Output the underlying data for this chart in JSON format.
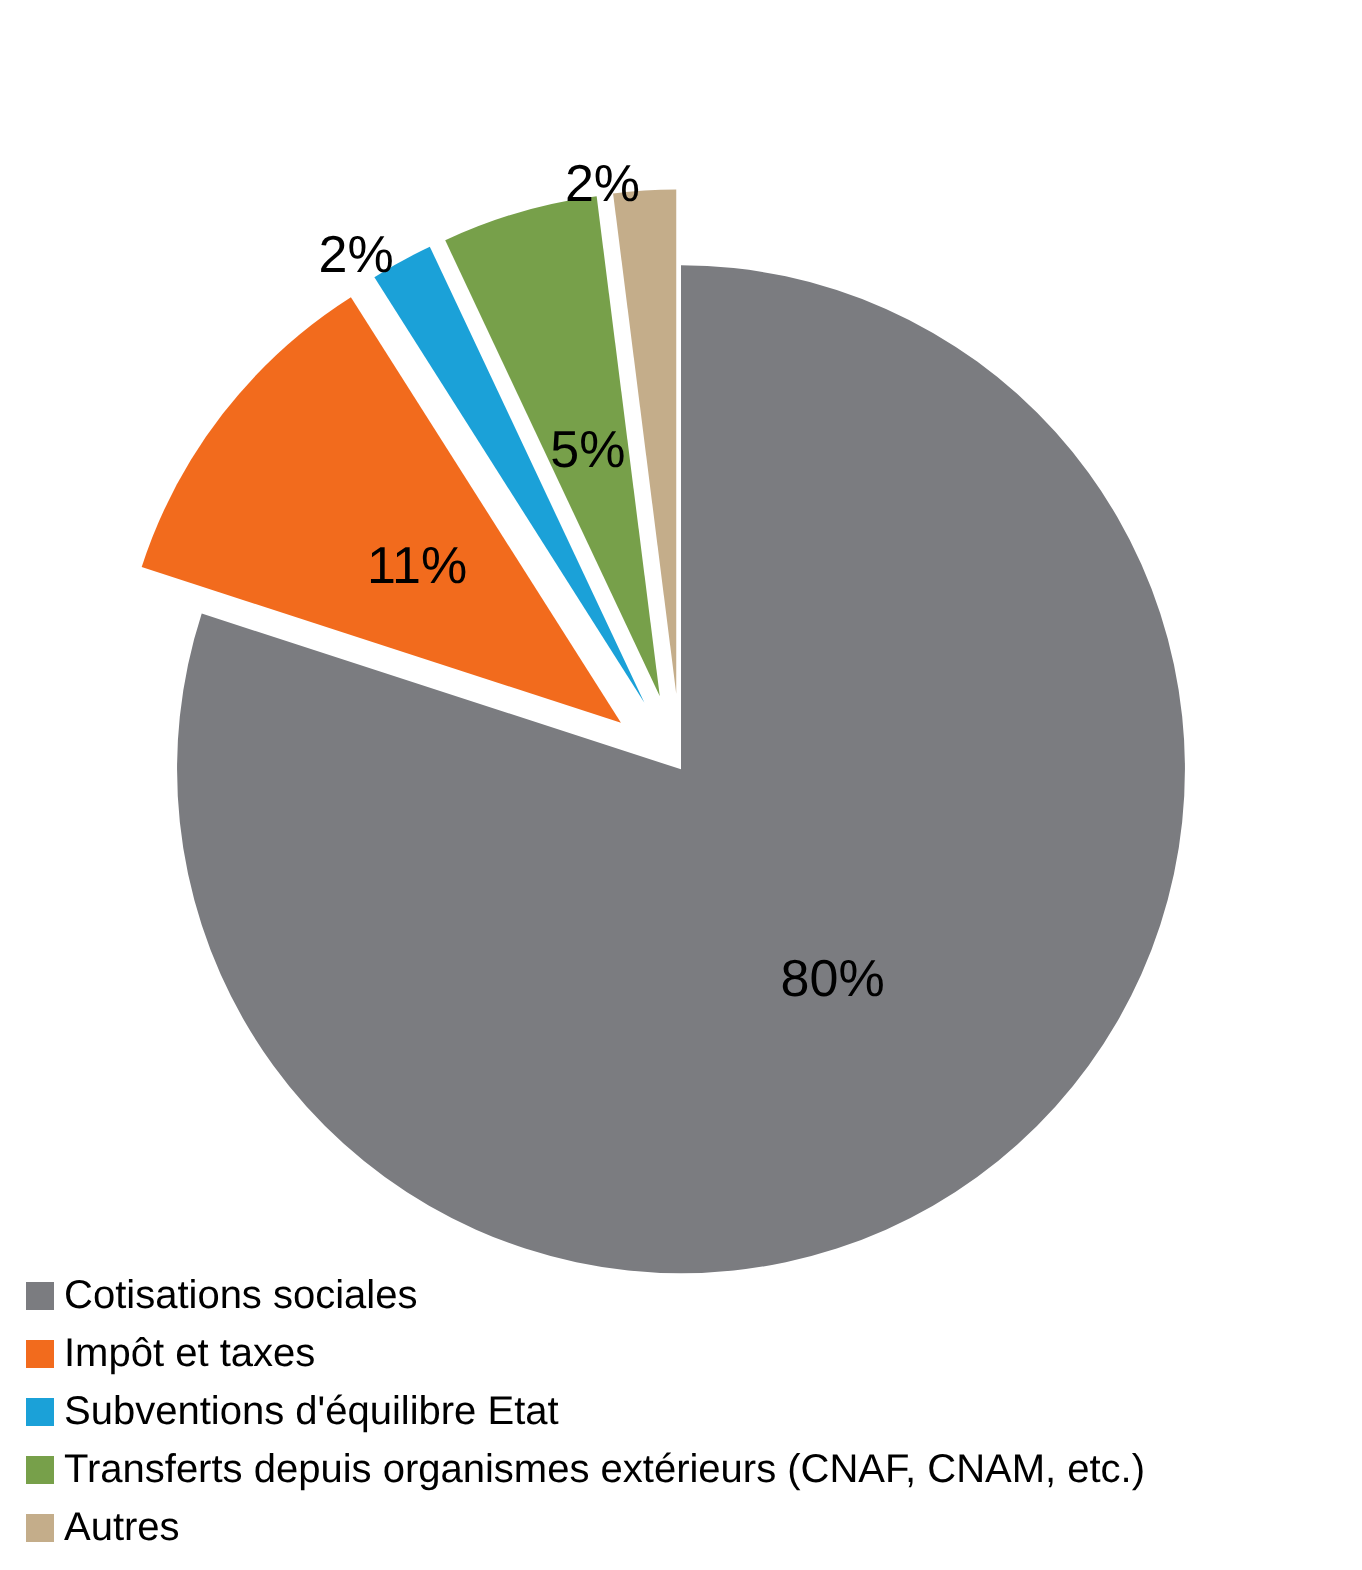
{
  "chart_data": {
    "type": "pie",
    "categories": [
      "Cotisations sociales",
      "Impôt et taxes",
      "Subventions d'équilibre Etat",
      "Transferts depuis organismes extérieurs (CNAF, CNAM, etc.)",
      "Autres"
    ],
    "values": [
      80,
      11,
      2,
      5,
      2
    ],
    "colors": [
      "#7b7c80",
      "#f26b1d",
      "#1ba1d8",
      "#77a04a",
      "#c4ad8a"
    ],
    "value_labels": [
      "80%",
      "11%",
      "2%",
      "5%",
      "2%"
    ],
    "legend": "bottom left"
  }
}
